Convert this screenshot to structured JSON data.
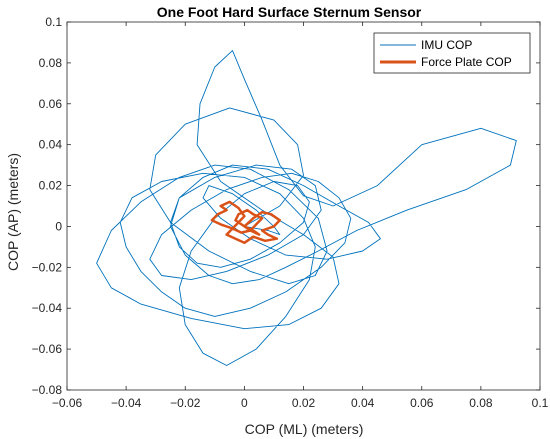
{
  "chart_data": {
    "type": "line",
    "title": "One Foot Hard Surface Sternum Sensor",
    "xlabel": "COP (ML) (meters)",
    "ylabel": "COP (AP) (meters)",
    "xlim": [
      -0.06,
      0.1
    ],
    "ylim": [
      -0.08,
      0.1
    ],
    "xticks": [
      -0.06,
      -0.04,
      -0.02,
      0,
      0.02,
      0.04,
      0.06,
      0.08,
      0.1
    ],
    "yticks": [
      -0.08,
      -0.06,
      -0.04,
      -0.02,
      0,
      0.02,
      0.04,
      0.06,
      0.08,
      0.1
    ],
    "xtick_labels": [
      "−0.06",
      "−0.04",
      "−0.02",
      "0",
      "0.02",
      "0.04",
      "0.06",
      "0.08",
      "0.1"
    ],
    "ytick_labels": [
      "−0.08",
      "−0.06",
      "−0.04",
      "−0.02",
      "0",
      "0.02",
      "0.04",
      "0.06",
      "0.08",
      "0.1"
    ],
    "grid": false,
    "legend_position": "top-right",
    "series": [
      {
        "name": "IMU COP",
        "color": "#0072BD",
        "x": [
          0.0,
          0.012,
          0.02,
          0.018,
          0.01,
          -0.005,
          -0.02,
          -0.03,
          -0.032,
          -0.025,
          -0.012,
          0.002,
          0.015,
          0.024,
          0.028,
          0.025,
          0.015,
          0.002,
          -0.01,
          -0.022,
          -0.035,
          -0.045,
          -0.05,
          -0.045,
          -0.035,
          -0.018,
          0.0,
          0.015,
          0.026,
          0.032,
          0.03,
          0.02,
          0.006,
          -0.008,
          -0.016,
          -0.015,
          -0.01,
          -0.004,
          0.0,
          0.006,
          0.012,
          0.02,
          0.03,
          0.045,
          0.06,
          0.08,
          0.092,
          0.09,
          0.075,
          0.055,
          0.038,
          0.025,
          0.014,
          0.005,
          -0.004,
          -0.012,
          -0.02,
          -0.025,
          -0.022,
          -0.01,
          0.004,
          0.016,
          0.024,
          0.026,
          0.02,
          0.008,
          -0.006,
          -0.018,
          -0.028,
          -0.032,
          -0.028,
          -0.018,
          -0.006,
          0.006,
          0.016,
          0.025,
          0.032,
          0.036,
          0.034,
          0.026,
          0.014,
          0.002,
          -0.01,
          -0.02,
          -0.028,
          -0.035,
          -0.04,
          -0.042,
          -0.038,
          -0.028,
          -0.014,
          0.0,
          0.012,
          0.02,
          0.024,
          0.022,
          0.014,
          0.004,
          -0.006,
          -0.014,
          -0.02,
          -0.022,
          -0.018,
          -0.01,
          0.0,
          0.01,
          0.018,
          0.022,
          0.02,
          0.012,
          0.002,
          -0.008,
          -0.016,
          -0.022,
          -0.025,
          -0.022,
          -0.014,
          -0.004,
          0.008,
          0.02,
          0.032,
          0.042,
          0.046,
          0.04,
          0.028,
          0.014,
          0.002,
          -0.008,
          -0.014,
          -0.012,
          -0.004,
          0.004,
          0.01,
          0.012,
          0.008,
          0.0
        ],
        "y": [
          0.0,
          0.01,
          0.025,
          0.04,
          0.052,
          0.058,
          0.05,
          0.035,
          0.018,
          0.002,
          -0.012,
          -0.022,
          -0.028,
          -0.024,
          -0.012,
          0.004,
          0.018,
          0.028,
          0.03,
          0.024,
          0.012,
          -0.002,
          -0.018,
          -0.03,
          -0.038,
          -0.045,
          -0.05,
          -0.048,
          -0.04,
          -0.028,
          -0.015,
          -0.004,
          0.008,
          0.022,
          0.04,
          0.06,
          0.078,
          0.086,
          0.072,
          0.052,
          0.03,
          0.015,
          0.01,
          0.02,
          0.04,
          0.048,
          0.042,
          0.03,
          0.018,
          0.008,
          -0.002,
          -0.012,
          -0.02,
          -0.026,
          -0.028,
          -0.024,
          -0.014,
          0.0,
          0.014,
          0.024,
          0.03,
          0.028,
          0.02,
          0.008,
          -0.004,
          -0.014,
          -0.022,
          -0.026,
          -0.024,
          -0.016,
          -0.004,
          0.008,
          0.018,
          0.024,
          0.026,
          0.022,
          0.014,
          0.004,
          -0.008,
          -0.02,
          -0.032,
          -0.04,
          -0.044,
          -0.04,
          -0.032,
          -0.022,
          -0.01,
          0.002,
          0.014,
          0.022,
          0.026,
          0.024,
          0.016,
          0.004,
          -0.01,
          -0.026,
          -0.044,
          -0.06,
          -0.068,
          -0.062,
          -0.048,
          -0.03,
          -0.012,
          0.004,
          0.016,
          0.022,
          0.02,
          0.012,
          0.002,
          -0.008,
          -0.016,
          -0.02,
          -0.018,
          -0.01,
          0.002,
          0.014,
          0.024,
          0.03,
          0.028,
          0.02,
          0.01,
          0.002,
          -0.006,
          -0.012,
          -0.016,
          -0.014,
          -0.006,
          0.004,
          0.014,
          0.02,
          0.016,
          0.008,
          0.0,
          -0.004,
          -0.002,
          0.0
        ]
      },
      {
        "name": "Force Plate COP",
        "color": "#D95319",
        "x": [
          0.0,
          0.003,
          0.006,
          0.009,
          0.012,
          0.01,
          0.006,
          0.008,
          0.011,
          0.007,
          0.003,
          0.0,
          -0.003,
          -0.006,
          -0.004,
          -0.008,
          -0.011,
          -0.009,
          -0.006,
          -0.008,
          -0.005,
          -0.002,
          0.0,
          -0.002,
          -0.004,
          -0.001,
          0.002,
          0.004,
          0.006,
          0.003,
          0.001,
          -0.002,
          -0.003,
          0.0,
          0.003,
          0.005,
          0.002,
          0.0
        ],
        "y": [
          0.0,
          0.004,
          0.007,
          0.006,
          0.003,
          0.0,
          -0.002,
          -0.004,
          -0.006,
          -0.007,
          -0.005,
          -0.008,
          -0.006,
          -0.004,
          -0.001,
          0.001,
          0.003,
          0.006,
          0.008,
          0.01,
          0.012,
          0.009,
          0.005,
          0.002,
          -0.001,
          -0.003,
          -0.002,
          0.001,
          0.004,
          0.006,
          0.008,
          0.006,
          0.003,
          0.0,
          -0.002,
          -0.004,
          -0.002,
          0.0
        ]
      }
    ]
  }
}
